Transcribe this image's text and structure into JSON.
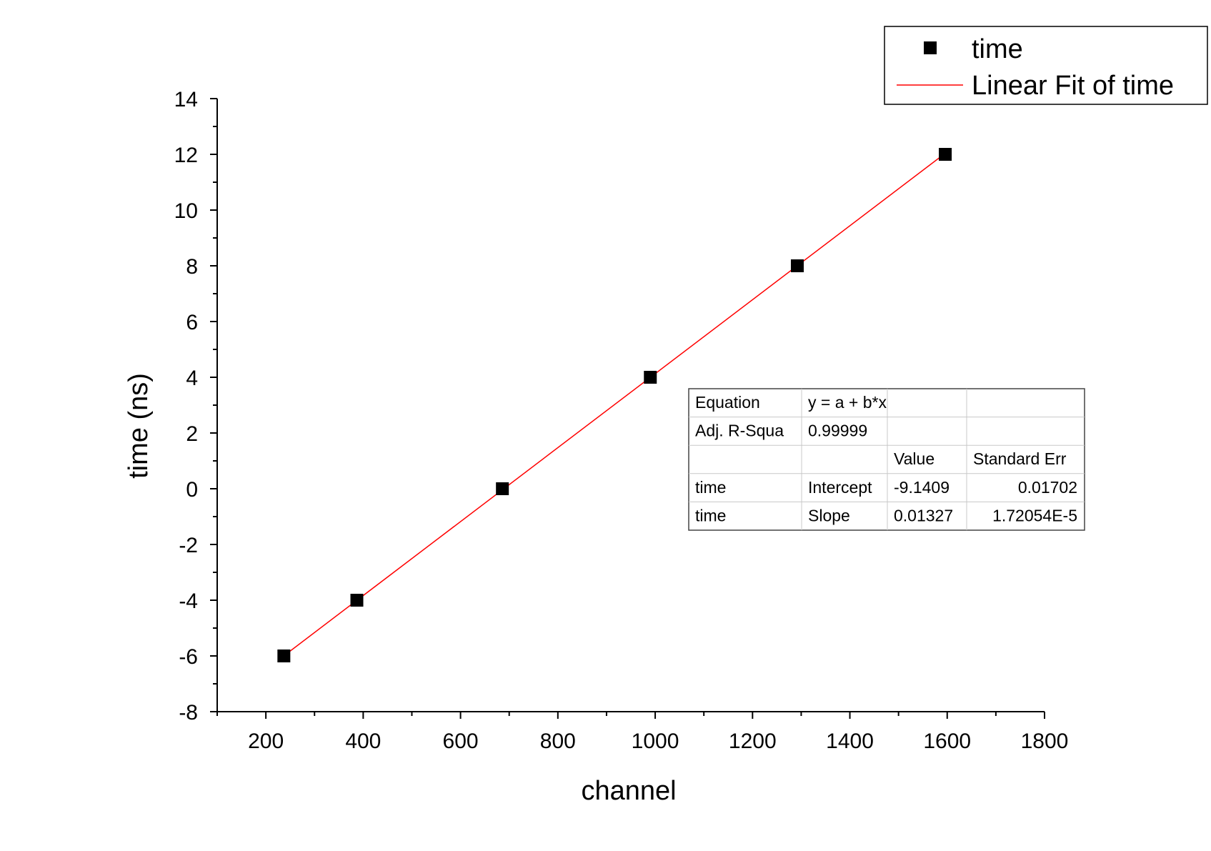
{
  "chart_data": {
    "type": "scatter",
    "title": "",
    "xlabel": "channel",
    "ylabel": "time (ns)",
    "xlim": [
      100,
      1800
    ],
    "ylim": [
      -8,
      14
    ],
    "x_ticks": [
      200,
      400,
      600,
      800,
      1000,
      1200,
      1400,
      1600,
      1800
    ],
    "y_ticks": [
      -8,
      -6,
      -4,
      -2,
      0,
      2,
      4,
      6,
      8,
      10,
      12,
      14
    ],
    "grid": false,
    "legend_position": "top-right",
    "colors": {
      "points": "#000000",
      "fit_line": "#ff0000"
    },
    "series": [
      {
        "name": "time",
        "kind": "scatter",
        "marker": "square",
        "x": [
          237,
          387,
          686,
          990,
          1292,
          1596
        ],
        "y": [
          -6,
          -4,
          0,
          4,
          8,
          12
        ]
      },
      {
        "name": "Linear Fit of time",
        "kind": "line",
        "intercept": -9.1409,
        "slope": 0.01327,
        "x_range": [
          237,
          1596
        ]
      }
    ],
    "fit_table": {
      "rows": [
        [
          "Equation",
          "y = a + b*x",
          "",
          ""
        ],
        [
          "Adj. R-Squa",
          "0.99999",
          "",
          ""
        ],
        [
          "",
          "",
          "Value",
          "Standard Err"
        ],
        [
          "time",
          "Intercept",
          "-9.1409",
          "0.01702"
        ],
        [
          "time",
          "Slope",
          "0.01327",
          "1.72054E-5"
        ]
      ]
    }
  }
}
